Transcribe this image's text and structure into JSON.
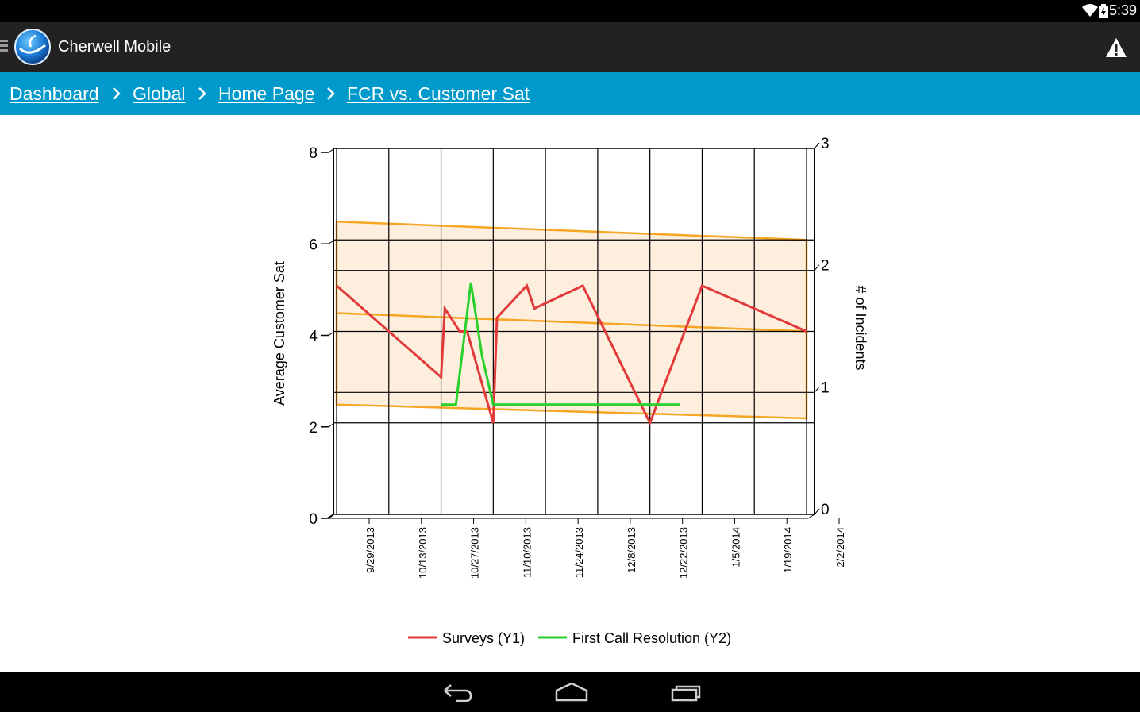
{
  "status_bar": {
    "time": "5:39"
  },
  "app": {
    "title": "Cherwell Mobile"
  },
  "breadcrumb": {
    "items": [
      "Dashboard",
      "Global",
      "Home Page",
      "FCR vs. Customer Sat"
    ]
  },
  "colors": {
    "breadcrumb_bg": "#0099cc",
    "action_bar_bg": "#222222",
    "surveys_line": "#e23a3a",
    "fcr_line": "#27d02b",
    "band_fill": "#fdeedd",
    "band_border": "#f5a623"
  },
  "chart_data": {
    "type": "line",
    "ylabel": "Average Customer Sat",
    "y2label": "# of Incidents",
    "ylim": [
      0,
      8
    ],
    "y2lim": [
      0,
      3
    ],
    "yticks": [
      "0",
      "2",
      "4",
      "6",
      "8"
    ],
    "y2ticks": [
      "0",
      "1",
      "2",
      "3"
    ],
    "xticks": [
      "9/29/2013",
      "10/13/2013",
      "10/27/2013",
      "11/10/2013",
      "11/24/2013",
      "12/8/2013",
      "12/22/2013",
      "1/5/2014",
      "1/19/2014",
      "2/2/2014"
    ],
    "grid": true,
    "legend_position": "bottom",
    "series": [
      {
        "name": "Surveys (Y1)",
        "axis": "y1",
        "color": "#e23a3a",
        "points": [
          [
            "9/29/2013",
            5.0
          ],
          [
            "10/27/2013",
            3.0
          ],
          [
            "10/28/2013",
            4.5
          ],
          [
            "11/1/2013",
            4.0
          ],
          [
            "11/3/2013",
            4.0
          ],
          [
            "11/10/2013",
            2.0
          ],
          [
            "11/11/2013",
            4.3
          ],
          [
            "11/19/2013",
            5.0
          ],
          [
            "11/21/2013",
            4.5
          ],
          [
            "12/4/2013",
            5.0
          ],
          [
            "12/22/2013",
            2.0
          ],
          [
            "1/5/2014",
            5.0
          ],
          [
            "2/2/2014",
            4.0
          ]
        ]
      },
      {
        "name": "First Call Resolution (Y2)",
        "axis": "y2",
        "color": "#27d02b",
        "points": [
          [
            "10/27/2013",
            0.9
          ],
          [
            "10/31/2013",
            0.9
          ],
          [
            "11/4/2013",
            1.9
          ],
          [
            "11/7/2013",
            1.3
          ],
          [
            "11/10/2013",
            0.9
          ],
          [
            "12/30/2013",
            0.9
          ]
        ]
      }
    ],
    "band": {
      "upper": [
        [
          "9/29/2013",
          6.4
        ],
        [
          "2/2/2014",
          6.0
        ]
      ],
      "middle": [
        [
          "9/29/2013",
          4.4
        ],
        [
          "2/2/2014",
          4.0
        ]
      ],
      "lower": [
        [
          "9/29/2013",
          2.4
        ],
        [
          "2/2/2014",
          2.1
        ]
      ]
    }
  }
}
